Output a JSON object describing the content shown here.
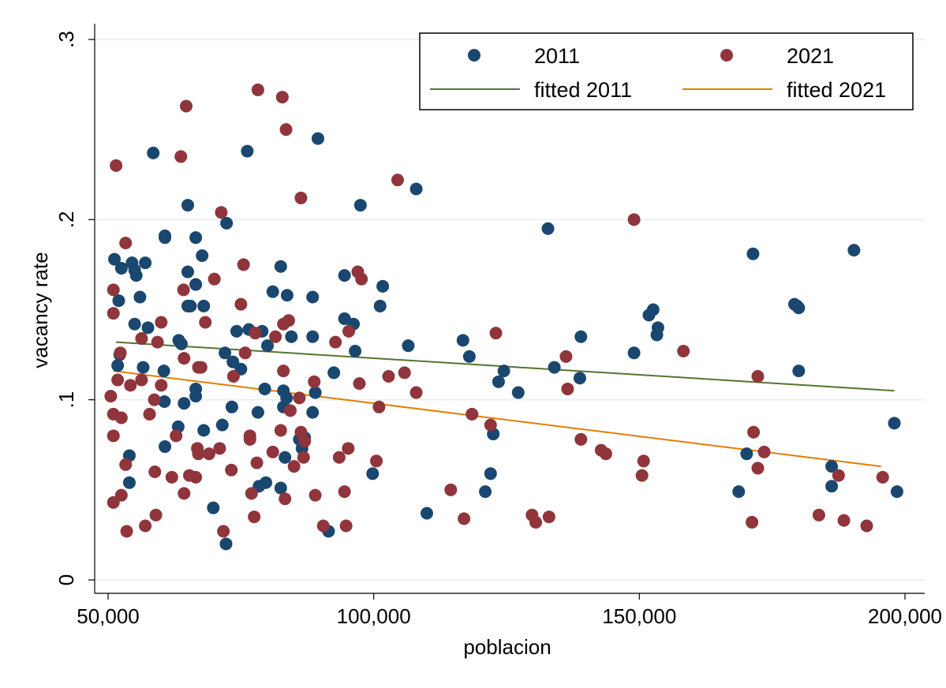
{
  "chart_data": {
    "type": "scatter",
    "title": "",
    "xlabel": "poblacion",
    "ylabel": "vacancy rate",
    "xlim": [
      50000,
      200000
    ],
    "ylim": [
      0,
      0.3
    ],
    "x_ticks": [
      {
        "value": 50000,
        "label": "50,000"
      },
      {
        "value": 100000,
        "label": "100,000"
      },
      {
        "value": 150000,
        "label": "150,000"
      },
      {
        "value": 200000,
        "label": "200,000"
      }
    ],
    "y_ticks": [
      {
        "value": 0,
        "label": "0"
      },
      {
        "value": 0.1,
        "label": ".1"
      },
      {
        "value": 0.2,
        "label": ".2"
      },
      {
        "value": 0.3,
        "label": ".3"
      }
    ],
    "grid": true,
    "legend_position": "top-right",
    "colors": {
      "2011": "#1a476f",
      "2021": "#90353b",
      "fitted 2011": "#55752f",
      "fitted 2021": "#e37e00",
      "grid": "#eaf2f3"
    },
    "legend": [
      "2011",
      "2021",
      "fitted 2011",
      "fitted 2021"
    ],
    "series": [
      {
        "name": "2011",
        "kind": "scatter",
        "points": [
          [
            51200,
            0.178
          ],
          [
            52500,
            0.173
          ],
          [
            52000,
            0.155
          ],
          [
            51800,
            0.119
          ],
          [
            52200,
            0.125
          ],
          [
            54000,
            0.069
          ],
          [
            54000,
            0.054
          ],
          [
            54500,
            0.176
          ],
          [
            55000,
            0.172
          ],
          [
            55300,
            0.169
          ],
          [
            55000,
            0.142
          ],
          [
            56000,
            0.157
          ],
          [
            56600,
            0.118
          ],
          [
            57000,
            0.176
          ],
          [
            57500,
            0.14
          ],
          [
            58500,
            0.237
          ],
          [
            60500,
            0.116
          ],
          [
            60700,
            0.191
          ],
          [
            60700,
            0.19
          ],
          [
            60600,
            0.099
          ],
          [
            60700,
            0.074
          ],
          [
            63300,
            0.133
          ],
          [
            63800,
            0.131
          ],
          [
            63200,
            0.085
          ],
          [
            64300,
            0.098
          ],
          [
            65000,
            0.208
          ],
          [
            65000,
            0.171
          ],
          [
            65500,
            0.152
          ],
          [
            65000,
            0.152
          ],
          [
            66500,
            0.19
          ],
          [
            66500,
            0.164
          ],
          [
            66500,
            0.106
          ],
          [
            66500,
            0.102
          ],
          [
            67700,
            0.18
          ],
          [
            68000,
            0.152
          ],
          [
            68000,
            0.083
          ],
          [
            69800,
            0.04
          ],
          [
            71500,
            0.086
          ],
          [
            72000,
            0.126
          ],
          [
            72300,
            0.198
          ],
          [
            72200,
            0.02
          ],
          [
            73300,
            0.096
          ],
          [
            73500,
            0.121
          ],
          [
            74200,
            0.138
          ],
          [
            75000,
            0.117
          ],
          [
            76200,
            0.238
          ],
          [
            76500,
            0.139
          ],
          [
            78200,
            0.093
          ],
          [
            78400,
            0.052
          ],
          [
            79000,
            0.138
          ],
          [
            79500,
            0.106
          ],
          [
            79700,
            0.054
          ],
          [
            80000,
            0.13
          ],
          [
            81000,
            0.16
          ],
          [
            82500,
            0.174
          ],
          [
            82500,
            0.051
          ],
          [
            83000,
            0.096
          ],
          [
            83000,
            0.105
          ],
          [
            83300,
            0.068
          ],
          [
            83600,
            0.101
          ],
          [
            83700,
            0.158
          ],
          [
            84500,
            0.135
          ],
          [
            86000,
            0.078
          ],
          [
            86500,
            0.073
          ],
          [
            87000,
            0.079
          ],
          [
            88500,
            0.157
          ],
          [
            88500,
            0.135
          ],
          [
            88500,
            0.093
          ],
          [
            89000,
            0.104
          ],
          [
            89500,
            0.245
          ],
          [
            91500,
            0.027
          ],
          [
            92500,
            0.115
          ],
          [
            94500,
            0.145
          ],
          [
            94500,
            0.169
          ],
          [
            96200,
            0.142
          ],
          [
            96500,
            0.127
          ],
          [
            97500,
            0.208
          ],
          [
            99800,
            0.059
          ],
          [
            101200,
            0.152
          ],
          [
            101700,
            0.163
          ],
          [
            106500,
            0.13
          ],
          [
            108000,
            0.217
          ],
          [
            110000,
            0.037
          ],
          [
            116800,
            0.133
          ],
          [
            118000,
            0.124
          ],
          [
            121000,
            0.049
          ],
          [
            122000,
            0.059
          ],
          [
            122500,
            0.081
          ],
          [
            123500,
            0.11
          ],
          [
            124500,
            0.116
          ],
          [
            127200,
            0.104
          ],
          [
            132800,
            0.195
          ],
          [
            134000,
            0.118
          ],
          [
            138800,
            0.112
          ],
          [
            139000,
            0.135
          ],
          [
            149000,
            0.126
          ],
          [
            151800,
            0.147
          ],
          [
            152600,
            0.15
          ],
          [
            153500,
            0.14
          ],
          [
            153300,
            0.136
          ],
          [
            168700,
            0.049
          ],
          [
            170200,
            0.07
          ],
          [
            171400,
            0.181
          ],
          [
            179200,
            0.153
          ],
          [
            179700,
            0.152
          ],
          [
            180000,
            0.116
          ],
          [
            180000,
            0.151
          ],
          [
            186200,
            0.063
          ],
          [
            186200,
            0.052
          ],
          [
            190400,
            0.183
          ],
          [
            198000,
            0.087
          ],
          [
            198500,
            0.049
          ]
        ]
      },
      {
        "name": "2021",
        "kind": "scatter",
        "points": [
          [
            50500,
            0.102
          ],
          [
            51000,
            0.148
          ],
          [
            51000,
            0.161
          ],
          [
            51000,
            0.092
          ],
          [
            51000,
            0.08
          ],
          [
            51000,
            0.043
          ],
          [
            51500,
            0.23
          ],
          [
            51800,
            0.111
          ],
          [
            52300,
            0.126
          ],
          [
            52500,
            0.09
          ],
          [
            52500,
            0.047
          ],
          [
            53300,
            0.187
          ],
          [
            53300,
            0.064
          ],
          [
            53500,
            0.027
          ],
          [
            54200,
            0.108
          ],
          [
            56300,
            0.111
          ],
          [
            56300,
            0.134
          ],
          [
            57000,
            0.03
          ],
          [
            57800,
            0.092
          ],
          [
            58700,
            0.1
          ],
          [
            58800,
            0.06
          ],
          [
            59000,
            0.036
          ],
          [
            59300,
            0.132
          ],
          [
            60000,
            0.143
          ],
          [
            60000,
            0.108
          ],
          [
            62000,
            0.057
          ],
          [
            62800,
            0.08
          ],
          [
            63700,
            0.235
          ],
          [
            64300,
            0.123
          ],
          [
            64200,
            0.161
          ],
          [
            64300,
            0.048
          ],
          [
            64700,
            0.263
          ],
          [
            65300,
            0.058
          ],
          [
            66500,
            0.057
          ],
          [
            66800,
            0.073
          ],
          [
            67000,
            0.118
          ],
          [
            67500,
            0.118
          ],
          [
            67000,
            0.07
          ],
          [
            68300,
            0.143
          ],
          [
            69000,
            0.07
          ],
          [
            70000,
            0.167
          ],
          [
            71000,
            0.073
          ],
          [
            71300,
            0.204
          ],
          [
            71700,
            0.027
          ],
          [
            73200,
            0.061
          ],
          [
            73600,
            0.113
          ],
          [
            75000,
            0.153
          ],
          [
            75500,
            0.175
          ],
          [
            75800,
            0.126
          ],
          [
            76700,
            0.08
          ],
          [
            76700,
            0.078
          ],
          [
            77000,
            0.048
          ],
          [
            77500,
            0.035
          ],
          [
            77700,
            0.137
          ],
          [
            78000,
            0.065
          ],
          [
            78200,
            0.272
          ],
          [
            81000,
            0.071
          ],
          [
            81500,
            0.135
          ],
          [
            82500,
            0.083
          ],
          [
            82800,
            0.268
          ],
          [
            83000,
            0.116
          ],
          [
            83000,
            0.142
          ],
          [
            83300,
            0.045
          ],
          [
            83500,
            0.25
          ],
          [
            84000,
            0.144
          ],
          [
            84300,
            0.094
          ],
          [
            85000,
            0.063
          ],
          [
            86000,
            0.101
          ],
          [
            86300,
            0.082
          ],
          [
            86300,
            0.212
          ],
          [
            86800,
            0.068
          ],
          [
            87000,
            0.077
          ],
          [
            88800,
            0.11
          ],
          [
            89000,
            0.047
          ],
          [
            90500,
            0.03
          ],
          [
            92800,
            0.132
          ],
          [
            93500,
            0.068
          ],
          [
            94500,
            0.049
          ],
          [
            94800,
            0.03
          ],
          [
            95200,
            0.073
          ],
          [
            95300,
            0.138
          ],
          [
            97000,
            0.171
          ],
          [
            97300,
            0.109
          ],
          [
            97700,
            0.167
          ],
          [
            100500,
            0.066
          ],
          [
            101000,
            0.096
          ],
          [
            102800,
            0.113
          ],
          [
            104500,
            0.222
          ],
          [
            105800,
            0.115
          ],
          [
            108000,
            0.104
          ],
          [
            114500,
            0.05
          ],
          [
            117000,
            0.034
          ],
          [
            118500,
            0.092
          ],
          [
            122000,
            0.086
          ],
          [
            123000,
            0.137
          ],
          [
            129800,
            0.036
          ],
          [
            130500,
            0.032
          ],
          [
            133000,
            0.035
          ],
          [
            136200,
            0.124
          ],
          [
            136500,
            0.106
          ],
          [
            139000,
            0.078
          ],
          [
            142800,
            0.072
          ],
          [
            143700,
            0.07
          ],
          [
            149000,
            0.2
          ],
          [
            150500,
            0.058
          ],
          [
            150800,
            0.066
          ],
          [
            158300,
            0.127
          ],
          [
            171200,
            0.032
          ],
          [
            171500,
            0.082
          ],
          [
            172300,
            0.113
          ],
          [
            172300,
            0.062
          ],
          [
            173500,
            0.071
          ],
          [
            183800,
            0.036
          ],
          [
            187500,
            0.058
          ],
          [
            188500,
            0.033
          ],
          [
            192800,
            0.03
          ],
          [
            195800,
            0.057
          ]
        ]
      },
      {
        "name": "fitted 2011",
        "kind": "line",
        "points": [
          [
            51500,
            0.132
          ],
          [
            198000,
            0.105
          ]
        ]
      },
      {
        "name": "fitted 2021",
        "kind": "line",
        "points": [
          [
            51000,
            0.116
          ],
          [
            195500,
            0.063
          ]
        ]
      }
    ]
  }
}
